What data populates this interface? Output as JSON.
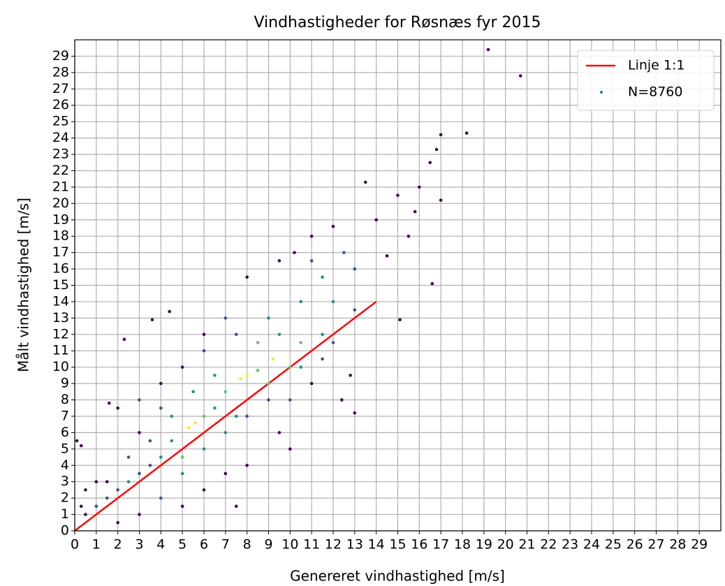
{
  "chart_data": {
    "type": "scatter",
    "title": "Vindhastigheder for Røsnæs fyr 2015",
    "xlabel": "Genereret vindhastighed [m/s]",
    "ylabel": "Målt vindhastighed [m/s]",
    "xlim": [
      0,
      30
    ],
    "ylim": [
      0,
      30
    ],
    "xticks": [
      0,
      1,
      2,
      3,
      4,
      5,
      6,
      7,
      8,
      9,
      10,
      11,
      12,
      13,
      14,
      15,
      16,
      17,
      18,
      19,
      20,
      21,
      22,
      23,
      24,
      25,
      26,
      27,
      28,
      29
    ],
    "yticks": [
      0,
      1,
      2,
      3,
      4,
      5,
      6,
      7,
      8,
      9,
      10,
      11,
      12,
      13,
      14,
      15,
      16,
      17,
      18,
      19,
      20,
      21,
      22,
      23,
      24,
      25,
      26,
      27,
      28,
      29
    ],
    "grid": true,
    "legend": "upper right",
    "series": [
      {
        "name": "Linje 1:1",
        "kind": "line",
        "color": "#ff0000",
        "x": [
          0,
          14
        ],
        "y": [
          0,
          14
        ]
      },
      {
        "name": "N=8760",
        "kind": "points",
        "color": "#1f77b4",
        "x": [
          19.2,
          20.7,
          18.2,
          17,
          16.6,
          15.1,
          3.6,
          4.4,
          2.3,
          0.1,
          0.3,
          15,
          16,
          16.5,
          14,
          15.5,
          13.5,
          17,
          16.8,
          14.5,
          15.8,
          12,
          12.5,
          13,
          11.5,
          12,
          13,
          12.8,
          12.4,
          13,
          11.5,
          10.5,
          11,
          10.5,
          9.5,
          10,
          9.2,
          8,
          7.7,
          8.5,
          7,
          6.5,
          5.6,
          5.3,
          6,
          4.5,
          4,
          3.5,
          3,
          2.5,
          2,
          1.5,
          1,
          0.5,
          1.5,
          0.5,
          2,
          3,
          4,
          5,
          6,
          7,
          8,
          9,
          10,
          11,
          9.5,
          10,
          8,
          7,
          6,
          5,
          7.5,
          3,
          2,
          1.6,
          3,
          4,
          5,
          6,
          7,
          8,
          7.5,
          9,
          8.5,
          6.5,
          5.5,
          4.5,
          3.5,
          2.5,
          1,
          0.3,
          9.5,
          10.2,
          11,
          6,
          4,
          5,
          7.5,
          9,
          10.5,
          11.5,
          12
        ],
        "y": [
          29.4,
          27.8,
          24.3,
          24.2,
          15.1,
          12.9,
          12.9,
          13.4,
          11.7,
          5.5,
          5.2,
          20.5,
          21,
          22.5,
          19,
          18,
          21.3,
          20.2,
          23.3,
          16.8,
          19.5,
          18.6,
          17,
          16,
          15.5,
          14,
          13.5,
          9.5,
          8,
          7.2,
          12,
          14,
          16.5,
          11.5,
          12,
          10,
          10.5,
          9.5,
          9.3,
          9.8,
          8.5,
          7.5,
          6.6,
          6.3,
          7,
          5.5,
          4.5,
          4,
          3.5,
          3,
          2.5,
          2,
          1.5,
          1,
          3,
          2.5,
          0.5,
          1,
          2,
          3.5,
          5,
          6,
          7,
          8,
          8,
          9,
          6,
          5,
          4,
          3.5,
          2.5,
          1.5,
          1.5,
          6,
          7.5,
          7.8,
          8,
          9,
          10,
          12,
          13,
          15.5,
          12,
          13,
          11.5,
          9.5,
          8.5,
          7,
          5.5,
          4.5,
          3,
          1.5,
          16.5,
          17,
          18,
          11,
          7.5,
          4.5,
          7,
          9,
          10,
          10.5,
          11.5
        ],
        "point_colors": [
          "#440154",
          "#440154",
          "#440154",
          "#440154",
          "#440154",
          "#440154",
          "#440154",
          "#440154",
          "#440154",
          "#440154",
          "#440154",
          "#440154",
          "#440154",
          "#440154",
          "#440154",
          "#440154",
          "#440154",
          "#440154",
          "#440154",
          "#440154",
          "#440154",
          "#440154",
          "#3b528b",
          "#3b528b",
          "#21918c",
          "#21918c",
          "#3b528b",
          "#440154",
          "#440154",
          "#440154",
          "#21918c",
          "#21918c",
          "#3b528b",
          "#5ec962",
          "#21918c",
          "#5ec962",
          "#fde725",
          "#fde725",
          "#fde725",
          "#5ec962",
          "#5ec962",
          "#21918c",
          "#fde725",
          "#fde725",
          "#5ec962",
          "#21918c",
          "#21918c",
          "#3b528b",
          "#3b528b",
          "#21918c",
          "#3b528b",
          "#3b528b",
          "#3b528b",
          "#440154",
          "#440154",
          "#440154",
          "#440154",
          "#440154",
          "#3b528b",
          "#21918c",
          "#21918c",
          "#21918c",
          "#3b528b",
          "#3b528b",
          "#3b528b",
          "#440154",
          "#440154",
          "#440154",
          "#440154",
          "#440154",
          "#440154",
          "#440154",
          "#440154",
          "#440154",
          "#440154",
          "#440154",
          "#3b528b",
          "#440154",
          "#440154",
          "#440154",
          "#3b528b",
          "#440154",
          "#3b528b",
          "#21918c",
          "#5ec962",
          "#21918c",
          "#21918c",
          "#21918c",
          "#3b528b",
          "#3b528b",
          "#440154",
          "#440154",
          "#440154",
          "#440154",
          "#440154",
          "#3b528b",
          "#3b528b",
          "#5ec962",
          "#21918c",
          "#5ec962",
          "#21918c",
          "#3b528b",
          "#3b528b"
        ]
      }
    ]
  }
}
